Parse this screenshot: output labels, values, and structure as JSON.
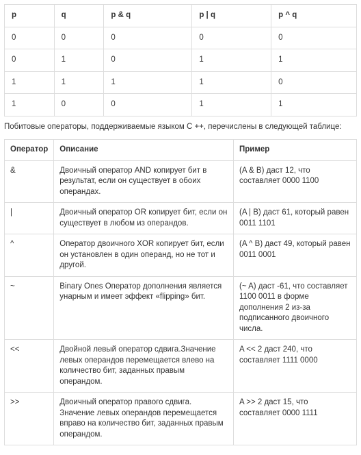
{
  "truth_table": {
    "headers": [
      "p",
      "q",
      "p & q",
      "p | q",
      "p ^ q"
    ],
    "rows": [
      [
        "0",
        "0",
        "0",
        "0",
        "0"
      ],
      [
        "0",
        "1",
        "0",
        "1",
        "1"
      ],
      [
        "1",
        "1",
        "1",
        "1",
        "0"
      ],
      [
        "1",
        "0",
        "0",
        "1",
        "1"
      ]
    ]
  },
  "paragraph": "Побитовые операторы, поддерживаемые языком C ++, перечислены в следующей таблице:",
  "ops_table": {
    "headers": [
      "Оператор",
      "Описание",
      "Пример"
    ],
    "rows": [
      {
        "op": "&",
        "desc": "Двоичный оператор AND копирует бит в результат, если он существует в обоих операндах.",
        "ex": "(A & B) даст 12, что составляет 0000 1100"
      },
      {
        "op": "|",
        "desc": "Двоичный оператор OR копирует бит, если он существует в любом из операндов.",
        "ex": "(A | B) даст 61, который равен 0011 1101"
      },
      {
        "op": "^",
        "desc": "Оператор двоичного XOR копирует бит, если он установлен в один операнд, но не тот и другой.",
        "ex": "(A ^ B) даст 49, который равен 0011 0001"
      },
      {
        "op": "~",
        "desc": "Binary Ones Оператор дополнения является унарным и имеет эффект «flipping» бит.",
        "ex": "(~ A) даст -61, что составляет 1100 0011 в форме дополнения 2 из-за подписанного двоичного числа."
      },
      {
        "op": "<<",
        "desc": "Двойной левый оператор сдвига.Значение левых операндов перемещается влево на количество бит, заданных правым операндом.",
        "ex": "A << 2 даст 240, что составляет 1111 0000"
      },
      {
        "op": ">>",
        "desc": "Двоичный оператор правого сдвига. Значение левых операндов перемещается вправо на количество бит, заданных правым операндом.",
        "ex": "A >> 2 даст 15, что составляет 0000 1111"
      }
    ]
  }
}
